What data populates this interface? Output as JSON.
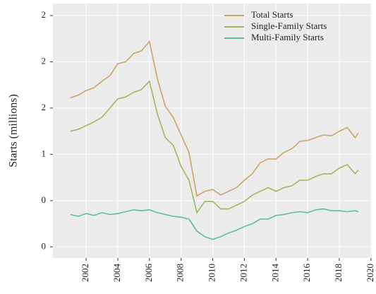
{
  "chart_data": {
    "type": "line",
    "y_label": "Starts (millions)",
    "x": [
      2001,
      2001.5,
      2002,
      2002.5,
      2003,
      2003.5,
      2004,
      2004.5,
      2005,
      2005.5,
      2006,
      2006.5,
      2007,
      2007.5,
      2008,
      2008.5,
      2009,
      2009.5,
      2010,
      2010.5,
      2011,
      2011.5,
      2012,
      2012.5,
      2013,
      2013.5,
      2014,
      2014.5,
      2015,
      2015.5,
      2016,
      2016.5,
      2017,
      2017.5,
      2018,
      2018.5,
      2019,
      2019.2
    ],
    "series": [
      {
        "name": "Total Starts",
        "color": "#c8a46a",
        "values": [
          1.61,
          1.64,
          1.69,
          1.72,
          1.79,
          1.85,
          1.98,
          2.0,
          2.09,
          2.12,
          2.22,
          1.82,
          1.52,
          1.4,
          1.21,
          1.02,
          0.55,
          0.6,
          0.62,
          0.56,
          0.6,
          0.64,
          0.72,
          0.79,
          0.91,
          0.95,
          0.95,
          1.02,
          1.06,
          1.14,
          1.15,
          1.18,
          1.21,
          1.2,
          1.25,
          1.29,
          1.18,
          1.23
        ]
      },
      {
        "name": "Single-Family Starts",
        "color": "#9bba5c",
        "values": [
          1.25,
          1.27,
          1.31,
          1.35,
          1.4,
          1.5,
          1.6,
          1.62,
          1.67,
          1.7,
          1.79,
          1.44,
          1.18,
          1.1,
          0.87,
          0.72,
          0.37,
          0.49,
          0.49,
          0.41,
          0.41,
          0.45,
          0.49,
          0.56,
          0.6,
          0.64,
          0.6,
          0.64,
          0.66,
          0.72,
          0.72,
          0.76,
          0.79,
          0.79,
          0.85,
          0.89,
          0.79,
          0.83
        ]
      },
      {
        "name": "Multi-Family Starts",
        "color": "#5fbf8e",
        "values": [
          0.35,
          0.33,
          0.36,
          0.34,
          0.37,
          0.35,
          0.36,
          0.38,
          0.4,
          0.39,
          0.4,
          0.37,
          0.35,
          0.33,
          0.32,
          0.3,
          0.17,
          0.11,
          0.08,
          0.11,
          0.15,
          0.18,
          0.22,
          0.25,
          0.3,
          0.3,
          0.34,
          0.35,
          0.37,
          0.38,
          0.37,
          0.4,
          0.41,
          0.39,
          0.39,
          0.38,
          0.39,
          0.38
        ]
      }
    ],
    "xlim": [
      1999.9,
      2020.05
    ],
    "xticks": [
      2002,
      2004,
      2006,
      2008,
      2010,
      2012,
      2014,
      2016,
      2018,
      2020
    ],
    "ylim": [
      -0.12,
      2.63
    ],
    "yticks": [
      0,
      {
        "value": 0.5,
        "label": "0"
      },
      1,
      {
        "value": 1.5,
        "label": "2"
      },
      2,
      {
        "value": 2.5,
        "label": "2"
      }
    ],
    "grid": true,
    "legend": "upper right"
  }
}
